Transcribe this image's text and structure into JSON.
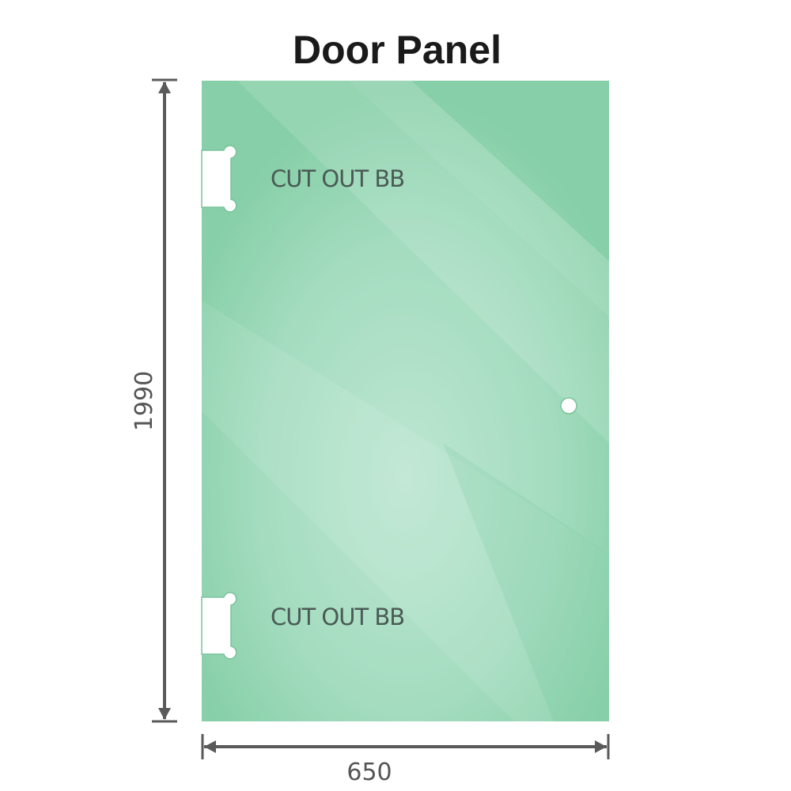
{
  "title": "Door Panel",
  "cutouts": [
    {
      "label": "CUT OUT BB"
    },
    {
      "label": "CUT OUT BB"
    }
  ],
  "dimensions": {
    "height": "1990",
    "width": "650"
  },
  "colors": {
    "glass": "#86cfa8",
    "glass_light": "#bde6d2",
    "dimension_line": "#5a5a5a"
  }
}
